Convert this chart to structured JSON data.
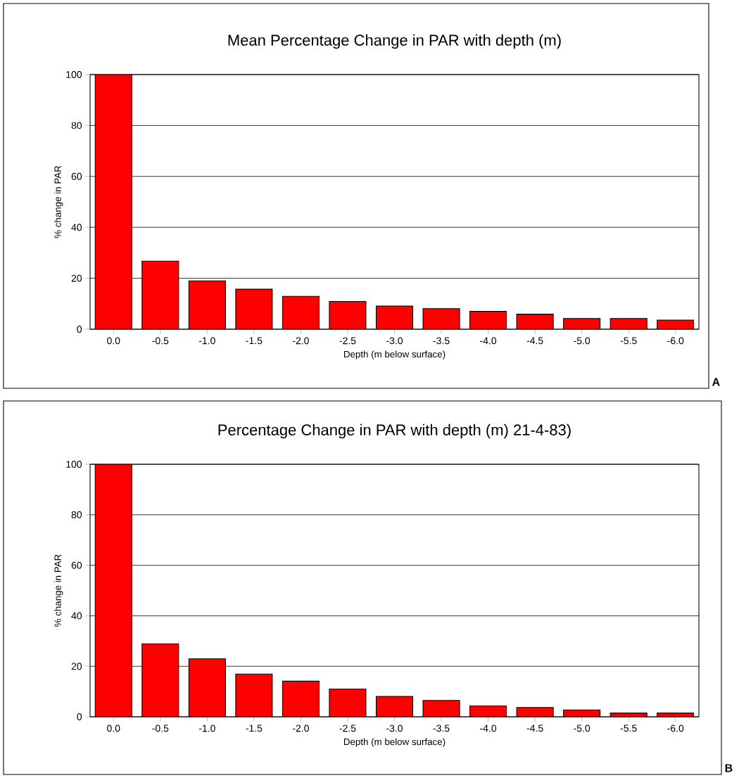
{
  "chart_data": [
    {
      "type": "bar",
      "title": "Mean Percentage Change in PAR with depth (m)",
      "xlabel": "Depth (m below surface)",
      "ylabel": "% change in PAR",
      "categories": [
        "0.0",
        "-0.5",
        "-1.0",
        "-1.5",
        "-2.0",
        "-2.5",
        "-3.0",
        "-3.5",
        "-4.0",
        "-4.5",
        "-5.0",
        "-5.5",
        "-6.0"
      ],
      "values": [
        100,
        26.7,
        19.0,
        15.7,
        12.9,
        10.9,
        9.1,
        8.1,
        7.0,
        5.9,
        4.2,
        4.2,
        3.6
      ],
      "color": "#ff0000",
      "ylim": [
        0,
        100
      ],
      "yticks": [
        0,
        20,
        40,
        60,
        80,
        100
      ],
      "grid": "y",
      "annotations": [
        "A"
      ]
    },
    {
      "type": "bar",
      "title": "Percentage Change in PAR with depth (m) 21-4-83)",
      "xlabel": "Depth (m below surface)",
      "ylabel": "% change in PAR",
      "categories": [
        "0.0",
        "-0.5",
        "-1.0",
        "-1.5",
        "-2.0",
        "-2.5",
        "-3.0",
        "-3.5",
        "-4.0",
        "-4.5",
        "-5.0",
        "-5.5",
        "-6.0"
      ],
      "values": [
        100,
        28.9,
        23.0,
        16.9,
        14.1,
        11.0,
        8.1,
        6.5,
        4.3,
        3.7,
        2.7,
        1.5,
        1.5
      ],
      "color": "#ff0000",
      "ylim": [
        0,
        100
      ],
      "yticks": [
        0,
        20,
        40,
        60,
        80,
        100
      ],
      "grid": "y",
      "annotations": [
        "B"
      ]
    }
  ]
}
